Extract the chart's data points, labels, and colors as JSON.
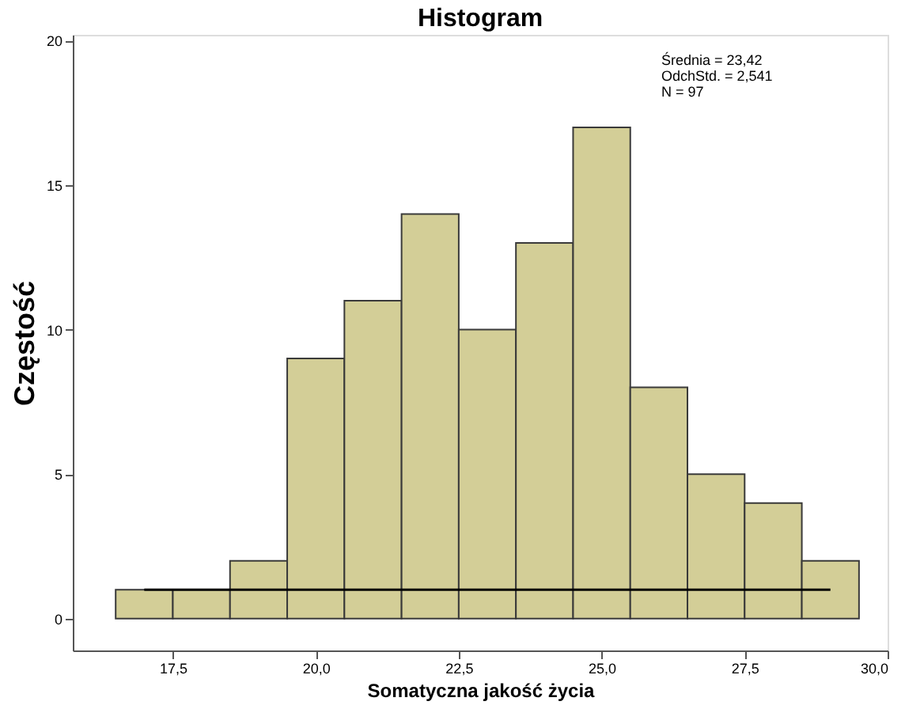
{
  "chart_data": {
    "type": "histogram",
    "title": "Histogram",
    "xlabel": "Somatyczna jakość życia",
    "ylabel": "Częstość",
    "bins": [
      16.5,
      17.5,
      18.5,
      19.5,
      20.5,
      21.5,
      22.5,
      23.5,
      24.5,
      25.5,
      26.5,
      27.5,
      28.5,
      29.5
    ],
    "values": [
      1,
      1,
      2,
      9,
      11,
      14,
      10,
      13,
      17,
      8,
      5,
      4,
      2
    ],
    "color": "#d3ce97",
    "series": [
      {
        "type": "line",
        "x": [
          17.0,
          29.0
        ],
        "values": [
          1,
          1
        ],
        "color": "#000000"
      }
    ],
    "annotations": [
      "Średnia = 23,42",
      "OdchStd. = 2,541",
      "N = 97"
    ],
    "xlim": [
      15.75,
      30.0
    ],
    "ylim": [
      -1.1,
      20.2
    ],
    "xticks": [
      {
        "value": 17.5,
        "label": "17,5"
      },
      {
        "value": 20.0,
        "label": "20,0"
      },
      {
        "value": 22.5,
        "label": "22,5"
      },
      {
        "value": 25.0,
        "label": "25,0"
      },
      {
        "value": 27.5,
        "label": "27,5"
      },
      {
        "value": 30.0,
        "label": "30,0"
      }
    ],
    "yticks": [
      0,
      5,
      10,
      15,
      20
    ],
    "grid": false,
    "legend": false
  }
}
